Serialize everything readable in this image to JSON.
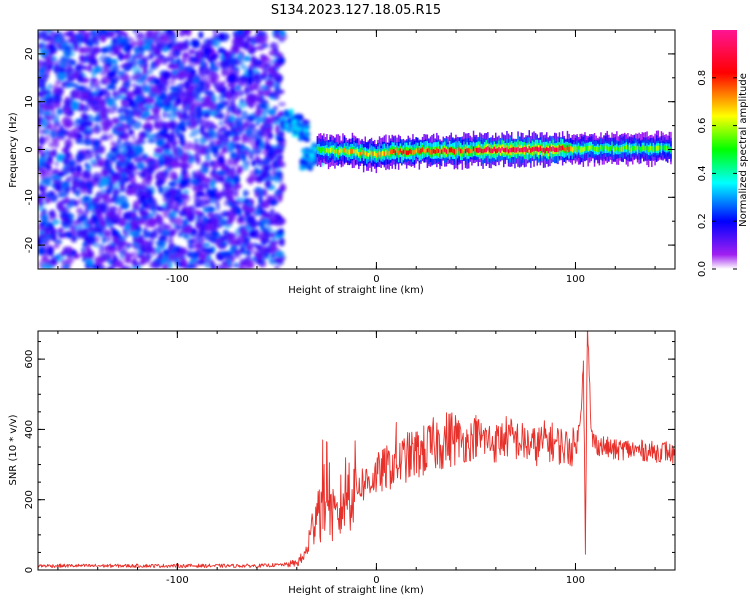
{
  "title": "S134.2023.127.18.05.R15",
  "chart_data": [
    {
      "type": "heatmap",
      "xlabel": "Height of straight line (km)",
      "ylabel": "Frequency (Hz)",
      "xlim": [
        -170,
        150
      ],
      "ylim": [
        -25,
        25
      ],
      "x_ticks": [
        -100,
        0,
        100
      ],
      "y_ticks": [
        -20,
        -10,
        0,
        10,
        20
      ],
      "colorbar": {
        "label": "Normalized spectral amplitude",
        "range": [
          0,
          1
        ],
        "ticks": [
          0.0,
          0.2,
          0.4,
          0.6,
          0.8
        ],
        "tick_labels": [
          "0.0",
          "0.2",
          "0.4",
          "0.6",
          "0.8"
        ],
        "colors": [
          "#ffffff",
          "#a020f0",
          "#0000ff",
          "#00ffff",
          "#00ff00",
          "#ffff00",
          "#ff0000",
          "#ff00ff"
        ]
      },
      "features": {
        "noise_region_x": [
          -170,
          -47
        ],
        "noise_region_amplitude": [
          0.1,
          0.3
        ],
        "transition_points": [
          {
            "x": -45,
            "y": 6,
            "amp": 0.3
          },
          {
            "x": -40,
            "y": 5,
            "amp": 0.35
          },
          {
            "x": -37,
            "y": 4,
            "amp": 0.3
          },
          {
            "x": -35,
            "y": -2,
            "amp": 0.3
          },
          {
            "x": -30,
            "y": -1,
            "amp": 0.3
          }
        ],
        "ridge_points": [
          [
            -30,
            0.0
          ],
          [
            -20,
            -0.3
          ],
          [
            -10,
            -0.6
          ],
          [
            0,
            -1.0
          ],
          [
            10,
            -0.4
          ],
          [
            20,
            -0.3
          ],
          [
            30,
            -0.3
          ],
          [
            40,
            -0.2
          ],
          [
            50,
            -0.2
          ],
          [
            60,
            0.0
          ],
          [
            70,
            0.0
          ],
          [
            80,
            0.0
          ],
          [
            90,
            0.0
          ],
          [
            100,
            0.2
          ],
          [
            110,
            0.2
          ],
          [
            120,
            0.2
          ],
          [
            130,
            0.2
          ],
          [
            140,
            0.2
          ],
          [
            148,
            0.2
          ]
        ],
        "ridge_amplitude": [
          [
            -30,
            0.5
          ],
          [
            -20,
            0.65
          ],
          [
            -10,
            0.7
          ],
          [
            0,
            0.65
          ],
          [
            10,
            0.8
          ],
          [
            20,
            0.8
          ],
          [
            30,
            0.85
          ],
          [
            40,
            0.8
          ],
          [
            50,
            0.85
          ],
          [
            60,
            0.95
          ],
          [
            70,
            0.95
          ],
          [
            80,
            0.95
          ],
          [
            90,
            0.95
          ],
          [
            100,
            0.6
          ],
          [
            110,
            0.55
          ],
          [
            120,
            0.55
          ],
          [
            130,
            0.55
          ],
          [
            140,
            0.55
          ],
          [
            148,
            0.5
          ]
        ]
      }
    },
    {
      "type": "line",
      "xlabel": "Height of straight line (km)",
      "ylabel": "SNR (10 * v/v)",
      "xlim": [
        -170,
        150
      ],
      "ylim": [
        0,
        680
      ],
      "x_ticks": [
        -100,
        0,
        100
      ],
      "y_ticks": [
        0,
        200,
        400,
        600
      ],
      "color": "#e8302a",
      "x": [
        -170,
        -160,
        -150,
        -140,
        -130,
        -120,
        -110,
        -100,
        -90,
        -80,
        -70,
        -60,
        -50,
        -45,
        -40,
        -36,
        -34,
        -32,
        -30,
        -27,
        -25,
        -22,
        -20,
        -15,
        -10,
        -5,
        0,
        5,
        10,
        15,
        20,
        25,
        30,
        35,
        40,
        45,
        50,
        55,
        60,
        65,
        70,
        75,
        80,
        85,
        90,
        95,
        100,
        102,
        104,
        105,
        106,
        108,
        110,
        115,
        120,
        125,
        130,
        135,
        140,
        145,
        150
      ],
      "y": [
        12,
        12,
        12,
        12,
        12,
        12,
        12,
        12,
        12,
        12,
        12,
        12,
        14,
        16,
        20,
        40,
        80,
        120,
        200,
        160,
        260,
        150,
        140,
        230,
        240,
        250,
        270,
        290,
        300,
        320,
        330,
        340,
        360,
        370,
        380,
        360,
        380,
        370,
        360,
        380,
        370,
        360,
        350,
        370,
        360,
        350,
        350,
        400,
        600,
        80,
        680,
        380,
        360,
        350,
        340,
        345,
        340,
        340,
        335,
        340,
        325
      ],
      "spikes": [
        {
          "x": -27,
          "y": 370
        },
        {
          "x": -25,
          "y": 365
        },
        {
          "x": 10,
          "y": 420
        },
        {
          "x": 50,
          "y": 440
        },
        {
          "x": 104,
          "y": 595
        },
        {
          "x": 105,
          "y": 45
        },
        {
          "x": 106,
          "y": 680
        }
      ]
    }
  ]
}
